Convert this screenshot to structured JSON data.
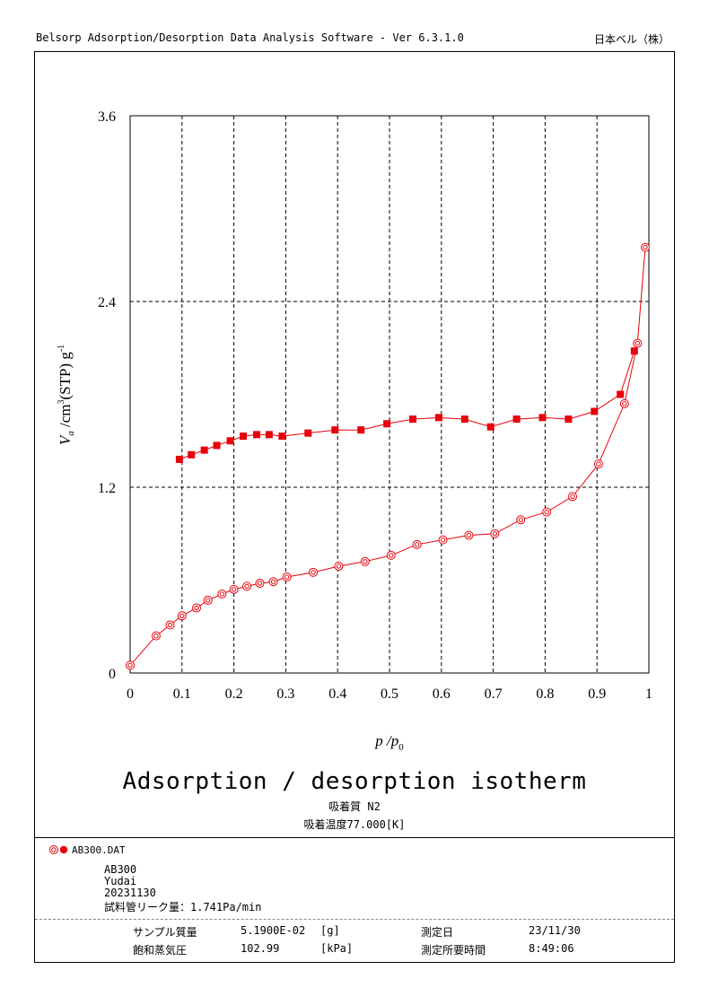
{
  "header": {
    "software": "Belsorp Adsorption/Desorption Data Analysis Software - Ver 6.3.1.0",
    "company": "日本ベル（株）"
  },
  "titles": {
    "main": "Adsorption / desorption isotherm",
    "adsorbate": "吸着質 N2",
    "temperature": "吸着温度77.000[K]"
  },
  "legend": {
    "file": "AB300.DAT"
  },
  "sample_info": {
    "name": "AB300",
    "operator": "Yudai",
    "date_code": "20231130",
    "leak_rate": "試料管リーク量：1.741Pa/min"
  },
  "table": {
    "sample_mass_label": "サンプル質量",
    "sample_mass_value": "5.1900E-02",
    "sample_mass_unit": "[g]",
    "measure_date_label": "測定日",
    "measure_date_value": "23/11/30",
    "sat_pressure_label": "飽和蒸気圧",
    "sat_pressure_value": "102.99",
    "sat_pressure_unit": "[kPa]",
    "measure_time_label": "測定所要時間",
    "measure_time_value": "8:49:06"
  },
  "chart_data": {
    "type": "scatter",
    "title": "Adsorption / desorption isotherm",
    "xlabel": "p /p0",
    "ylabel": "Va /cm3(STP) g-1",
    "xlim": [
      0,
      1
    ],
    "ylim": [
      0,
      3.6
    ],
    "x_ticks": [
      "0",
      "0.1",
      "0.2",
      "0.3",
      "0.4",
      "0.5",
      "0.6",
      "0.7",
      "0.8",
      "0.9",
      "1"
    ],
    "y_ticks": [
      "0",
      "1.2",
      "2.4",
      "3.6"
    ],
    "grid": true,
    "color": "#e8000b",
    "series": [
      {
        "name": "adsorption",
        "marker": "double-circle",
        "x": [
          0.0,
          0.05,
          0.077,
          0.1,
          0.128,
          0.15,
          0.177,
          0.2,
          0.225,
          0.25,
          0.276,
          0.302,
          0.353,
          0.402,
          0.453,
          0.503,
          0.553,
          0.603,
          0.653,
          0.703,
          0.753,
          0.803,
          0.853,
          0.903,
          0.953,
          0.978,
          0.993
        ],
        "y": [
          0.05,
          0.24,
          0.31,
          0.37,
          0.42,
          0.47,
          0.51,
          0.54,
          0.56,
          0.58,
          0.59,
          0.62,
          0.65,
          0.69,
          0.72,
          0.76,
          0.83,
          0.86,
          0.89,
          0.9,
          0.99,
          1.04,
          1.14,
          1.35,
          1.74,
          2.13,
          2.75
        ]
      },
      {
        "name": "desorption",
        "marker": "filled-square",
        "x": [
          0.095,
          0.118,
          0.143,
          0.167,
          0.193,
          0.218,
          0.244,
          0.268,
          0.293,
          0.343,
          0.395,
          0.445,
          0.495,
          0.545,
          0.595,
          0.645,
          0.695,
          0.745,
          0.795,
          0.845,
          0.895,
          0.945,
          0.972
        ],
        "y": [
          1.38,
          1.41,
          1.44,
          1.47,
          1.5,
          1.53,
          1.54,
          1.54,
          1.53,
          1.55,
          1.57,
          1.57,
          1.61,
          1.64,
          1.65,
          1.64,
          1.59,
          1.64,
          1.65,
          1.64,
          1.69,
          1.8,
          2.08
        ]
      }
    ]
  }
}
